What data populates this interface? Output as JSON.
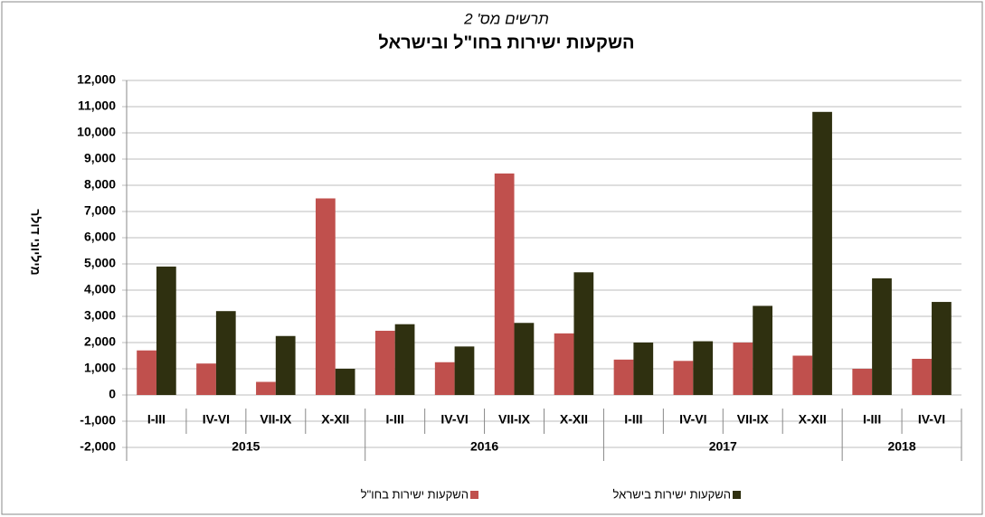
{
  "chart_data": {
    "type": "bar",
    "subtitle": "תרשים מס' 2",
    "title": "השקעות ישירות בחו\"ל ובישראל",
    "y_label": "מיליוני דולר",
    "groups": [
      {
        "label": "2015",
        "categories": [
          "I-III",
          "IV-VI",
          "VII-IX",
          "X-XII"
        ]
      },
      {
        "label": "2016",
        "categories": [
          "I-III",
          "IV-VI",
          "VII-IX",
          "X-XII"
        ]
      },
      {
        "label": "2017",
        "categories": [
          "I-III",
          "IV-VI",
          "VII-IX",
          "X-XII"
        ]
      },
      {
        "label": "2018",
        "categories": [
          "I-III",
          "IV-VI"
        ]
      }
    ],
    "series": [
      {
        "name": "השקעות ישירות בחו\"ל",
        "color": "#c0504d",
        "values": [
          1700,
          1200,
          500,
          7500,
          2450,
          1250,
          8450,
          2350,
          1350,
          1300,
          2000,
          1500,
          1000,
          1380
        ]
      },
      {
        "name": "השקעות ישירות בישראל",
        "color": "#2f3010",
        "values": [
          4900,
          3200,
          2250,
          1000,
          2700,
          1850,
          2750,
          4680,
          2000,
          2050,
          3400,
          10800,
          4450,
          3550
        ]
      }
    ],
    "ylim": [
      -2000,
      12000
    ],
    "yticks": [
      {
        "value": -2000,
        "label": "-2,000"
      },
      {
        "value": -1000,
        "label": "-1,000"
      },
      0,
      {
        "value": 1000,
        "label": "1,000"
      },
      {
        "value": 2000,
        "label": "2,000"
      },
      {
        "value": 3000,
        "label": "3,000"
      },
      {
        "value": 4000,
        "label": "4,000"
      },
      {
        "value": 5000,
        "label": "5,000"
      },
      {
        "value": 6000,
        "label": "6,000"
      },
      {
        "value": 7000,
        "label": "7,000"
      },
      {
        "value": 8000,
        "label": "8,000"
      },
      {
        "value": 9000,
        "label": "9,000"
      },
      {
        "value": 10000,
        "label": "10,000"
      },
      {
        "value": 11000,
        "label": "11,000"
      },
      {
        "value": 12000,
        "label": "12,000"
      }
    ],
    "grid": true
  }
}
